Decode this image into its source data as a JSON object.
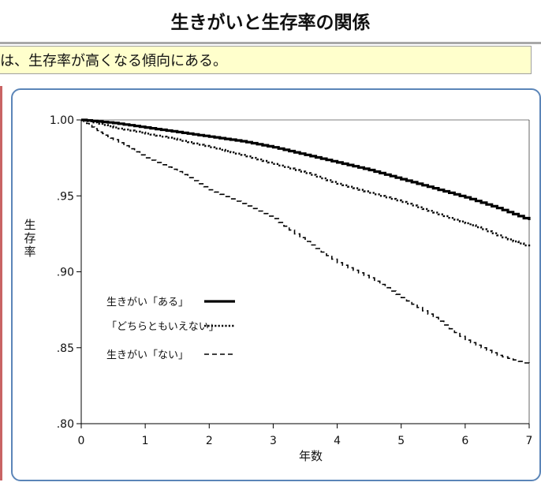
{
  "title": "生きがいと生存率の関係",
  "subtitle": "は、生存率が高くなる傾向にある。",
  "chart_data": {
    "type": "line",
    "xlabel": "年数",
    "ylabel": "生存率",
    "xlim": [
      0,
      7
    ],
    "ylim": [
      0.8,
      1.0
    ],
    "x_ticks": [
      "0",
      "1",
      "2",
      "3",
      "4",
      "5",
      "6",
      "7"
    ],
    "y_ticks": [
      ".80",
      ".85",
      ".90",
      ".95",
      "1.00"
    ],
    "grid": false,
    "legend_position": "left-middle",
    "series": [
      {
        "name": "生きがい「ある」",
        "style": "solid-thick",
        "color": "#000000",
        "x": [
          0,
          0.5,
          1,
          1.5,
          2,
          2.5,
          3,
          3.5,
          4,
          4.5,
          5,
          5.5,
          6,
          6.5,
          7
        ],
        "y": [
          1.0,
          0.998,
          0.995,
          0.992,
          0.989,
          0.986,
          0.982,
          0.977,
          0.972,
          0.967,
          0.961,
          0.955,
          0.949,
          0.942,
          0.934
        ]
      },
      {
        "name": "「どちらともいえない」",
        "style": "dotted",
        "color": "#000000",
        "x": [
          0,
          0.5,
          1,
          1.5,
          2,
          2.5,
          3,
          3.5,
          4,
          4.5,
          5,
          5.5,
          6,
          6.5,
          7
        ],
        "y": [
          1.0,
          0.995,
          0.991,
          0.987,
          0.982,
          0.977,
          0.971,
          0.965,
          0.958,
          0.952,
          0.946,
          0.939,
          0.932,
          0.924,
          0.916
        ]
      },
      {
        "name": "生きがい「ない」",
        "style": "dashed",
        "color": "#000000",
        "x": [
          0,
          0.25,
          0.5,
          1,
          1.5,
          2,
          2.5,
          3,
          3.5,
          4,
          4.5,
          5,
          5.5,
          6,
          6.5,
          7
        ],
        "y": [
          1.0,
          0.993,
          0.987,
          0.975,
          0.966,
          0.954,
          0.945,
          0.935,
          0.92,
          0.906,
          0.896,
          0.883,
          0.87,
          0.855,
          0.845,
          0.839
        ]
      }
    ]
  }
}
